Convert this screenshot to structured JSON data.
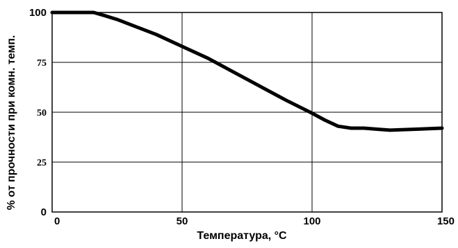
{
  "chart_data": {
    "type": "line",
    "title": "",
    "xlabel": "Температура, °C",
    "ylabel": "% от прочности при комн. темп.",
    "xlim": [
      0,
      150
    ],
    "ylim": [
      0,
      100
    ],
    "grid": true,
    "legend": "none",
    "x_ticks": [
      {
        "value": 0,
        "label": "0"
      },
      {
        "value": 50,
        "label": "50"
      },
      {
        "value": 100,
        "label": "100"
      },
      {
        "value": 150,
        "label": "150"
      }
    ],
    "y_ticks": [
      {
        "value": 0,
        "label": "0",
        "font": "sans"
      },
      {
        "value": 25,
        "label": "25",
        "font": "serif"
      },
      {
        "value": 50,
        "label": "50",
        "font": "serif"
      },
      {
        "value": 75,
        "label": "75",
        "font": "serif"
      },
      {
        "value": 100,
        "label": "100",
        "font": "sans"
      }
    ],
    "series": [
      {
        "color": "#000000",
        "x": [
          0,
          5,
          10,
          16,
          20,
          25,
          30,
          40,
          50,
          60,
          70,
          80,
          90,
          100,
          105,
          110,
          115,
          120,
          125,
          130,
          140,
          150
        ],
        "y": [
          100,
          100,
          100,
          100,
          98.5,
          96.5,
          94,
          89,
          83,
          77,
          70,
          63,
          56,
          49.5,
          46,
          43,
          42,
          42,
          41.5,
          41,
          41.5,
          42
        ]
      }
    ]
  }
}
